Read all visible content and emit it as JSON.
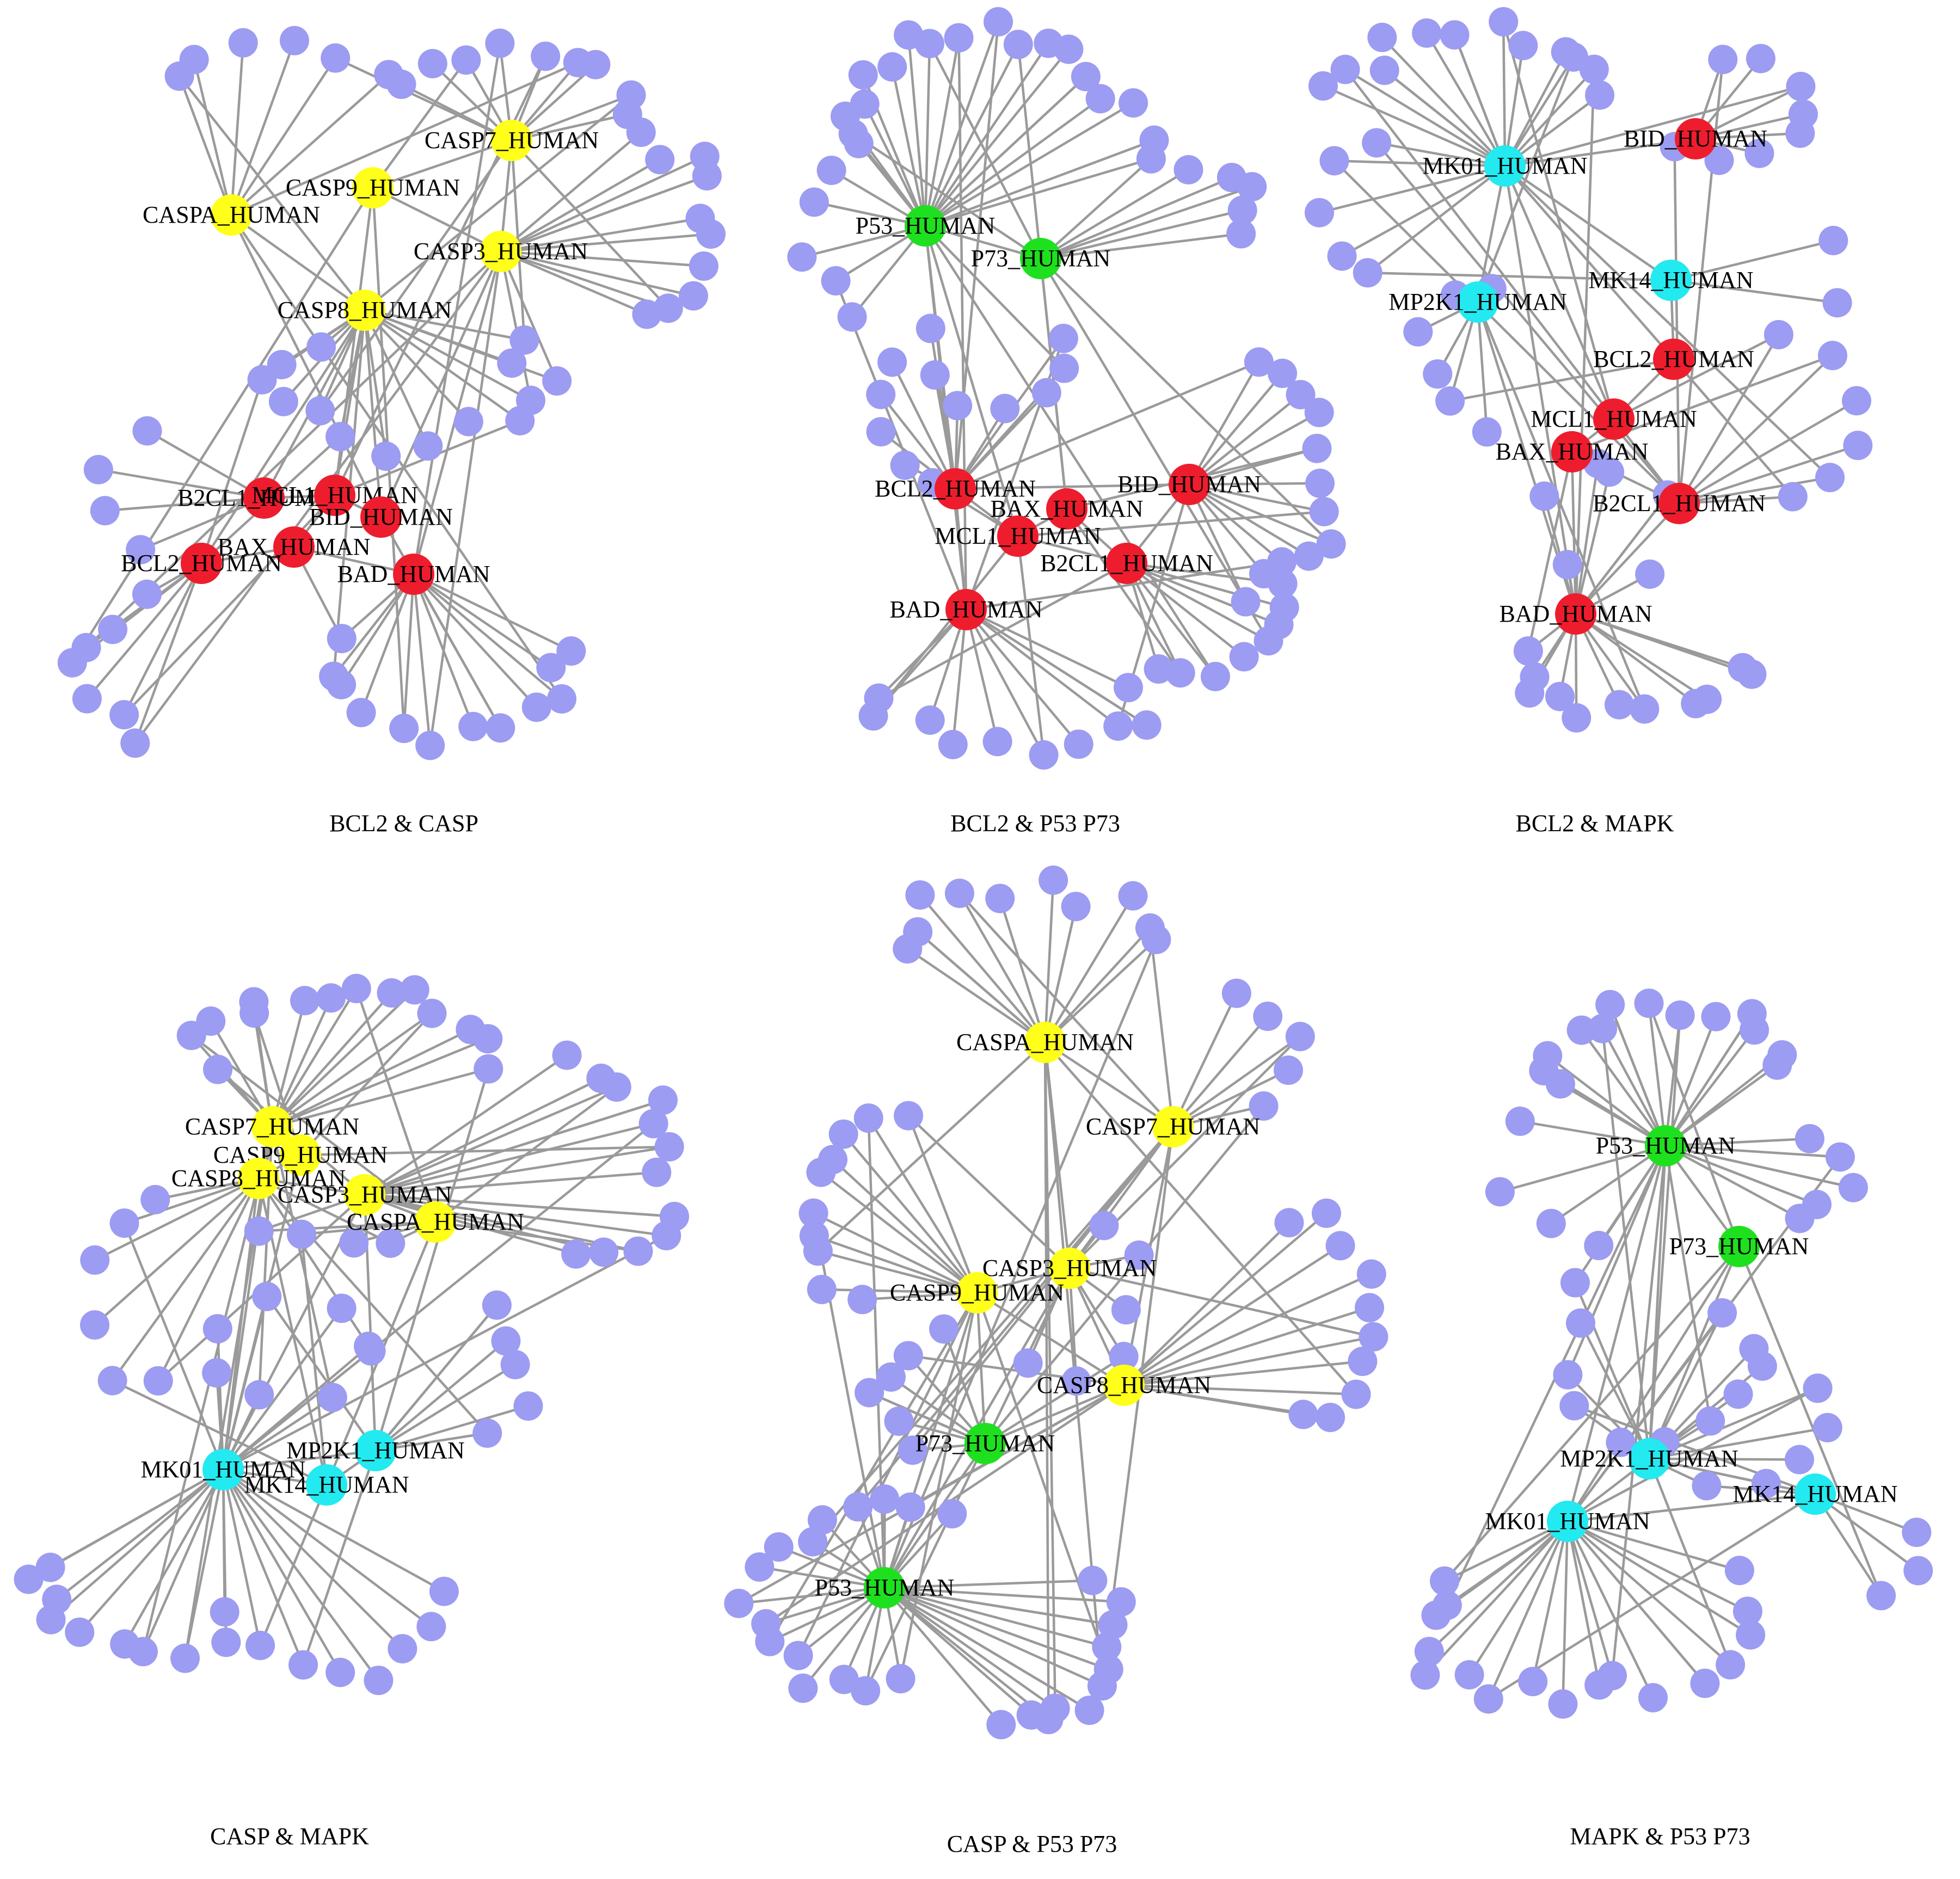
{
  "colors": {
    "minor": "#9c9cf2",
    "BCL2": "#ee1d2e",
    "CASP": "#ffff1a",
    "P53": "#1fe01f",
    "MAPK": "#22eaf0",
    "edge": "#9a9a9a"
  },
  "panels": [
    {
      "caption": "BCL2 & CASP",
      "hubs": [
        {
          "label": "CASP7_HUMAN",
          "family": "CASP"
        },
        {
          "label": "CASP9_HUMAN",
          "family": "CASP"
        },
        {
          "label": "CASPA_HUMAN",
          "family": "CASP"
        },
        {
          "label": "CASP3_HUMAN",
          "family": "CASP"
        },
        {
          "label": "CASP8_HUMAN",
          "family": "CASP"
        },
        {
          "label": "B2CL1_HUMAN",
          "family": "BCL2"
        },
        {
          "label": "MCL1_HUMAN",
          "family": "BCL2"
        },
        {
          "label": "BID_HUMAN",
          "family": "BCL2"
        },
        {
          "label": "BAX_HUMAN",
          "family": "BCL2"
        },
        {
          "label": "BCL2_HUMAN",
          "family": "BCL2"
        },
        {
          "label": "BAD_HUMAN",
          "family": "BCL2"
        }
      ],
      "minor_count": 62
    },
    {
      "caption": "BCL2 & P53  P73",
      "hubs": [
        {
          "label": "P53_HUMAN",
          "family": "P53"
        },
        {
          "label": "P73_HUMAN",
          "family": "P53"
        },
        {
          "label": "BID_HUMAN",
          "family": "BCL2"
        },
        {
          "label": "BCL2_HUMAN",
          "family": "BCL2"
        },
        {
          "label": "BAX_HUMAN",
          "family": "BCL2"
        },
        {
          "label": "MCL1_HUMAN",
          "family": "BCL2"
        },
        {
          "label": "B2CL1_HUMAN",
          "family": "BCL2"
        },
        {
          "label": "BAD_HUMAN",
          "family": "BCL2"
        }
      ],
      "minor_count": 68
    },
    {
      "caption": "BCL2 & MAPK",
      "hubs": [
        {
          "label": "BID_HUMAN",
          "family": "BCL2"
        },
        {
          "label": "MK01_HUMAN",
          "family": "MAPK"
        },
        {
          "label": "MK14_HUMAN",
          "family": "MAPK"
        },
        {
          "label": "MP2K1_HUMAN",
          "family": "MAPK"
        },
        {
          "label": "BCL2_HUMAN",
          "family": "BCL2"
        },
        {
          "label": "MCL1_HUMAN",
          "family": "BCL2"
        },
        {
          "label": "BAX_HUMAN",
          "family": "BCL2"
        },
        {
          "label": "B2CL1_HUMAN",
          "family": "BCL2"
        },
        {
          "label": "BAD_HUMAN",
          "family": "BCL2"
        }
      ],
      "minor_count": 60
    },
    {
      "caption": "CASP & MAPK",
      "hubs": [
        {
          "label": "CASP7_HUMAN",
          "family": "CASP"
        },
        {
          "label": "CASP9_HUMAN",
          "family": "CASP"
        },
        {
          "label": "CASP8_HUMAN",
          "family": "CASP"
        },
        {
          "label": "CASP3_HUMAN",
          "family": "CASP"
        },
        {
          "label": "CASPA_HUMAN",
          "family": "CASP"
        },
        {
          "label": "MP2K1_HUMAN",
          "family": "MAPK"
        },
        {
          "label": "MK01_HUMAN",
          "family": "MAPK"
        },
        {
          "label": "MK14_HUMAN",
          "family": "MAPK"
        }
      ],
      "minor_count": 66
    },
    {
      "caption": "CASP & P53  P73",
      "hubs": [
        {
          "label": "CASPA_HUMAN",
          "family": "CASP"
        },
        {
          "label": "CASP7_HUMAN",
          "family": "CASP"
        },
        {
          "label": "CASP3_HUMAN",
          "family": "CASP"
        },
        {
          "label": "CASP9_HUMAN",
          "family": "CASP"
        },
        {
          "label": "CASP8_HUMAN",
          "family": "CASP"
        },
        {
          "label": "P73_HUMAN",
          "family": "P53"
        },
        {
          "label": "P53_HUMAN",
          "family": "P53"
        }
      ],
      "minor_count": 74
    },
    {
      "caption": "MAPK & P53  P73",
      "hubs": [
        {
          "label": "P53_HUMAN",
          "family": "P53"
        },
        {
          "label": "P73_HUMAN",
          "family": "P53"
        },
        {
          "label": "MP2K1_HUMAN",
          "family": "MAPK"
        },
        {
          "label": "MK14_HUMAN",
          "family": "MAPK"
        },
        {
          "label": "MK01_HUMAN",
          "family": "MAPK"
        }
      ],
      "minor_count": 58
    }
  ]
}
